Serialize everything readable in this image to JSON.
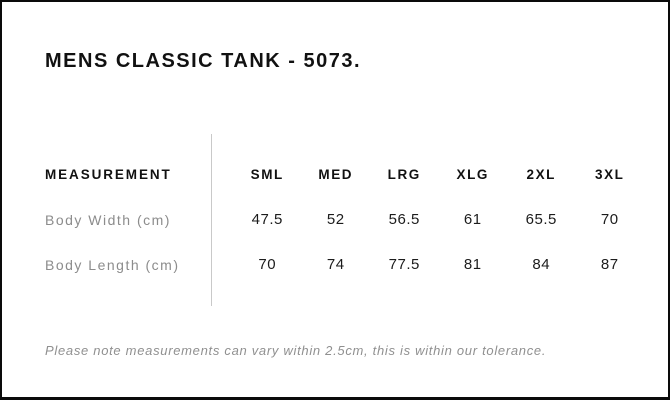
{
  "page": {
    "title": "MENS CLASSIC TANK - 5073.",
    "note": "Please note measurements can vary within 2.5cm, this is within our tolerance."
  },
  "size_chart": {
    "label_header": "MEASUREMENT",
    "size_headers": [
      "SML",
      "MED",
      "LRG",
      "XLG",
      "2XL",
      "3XL"
    ],
    "rows": [
      {
        "label": "Body Width (cm)",
        "values": [
          "47.5",
          "52",
          "56.5",
          "61",
          "65.5",
          "70"
        ]
      },
      {
        "label": "Body Length (cm)",
        "values": [
          "70",
          "74",
          "77.5",
          "81",
          "84",
          "87"
        ]
      }
    ]
  },
  "colors": {
    "frame_border": "#0a0a0a",
    "heading_text": "#111111",
    "value_text": "#1c1c1c",
    "muted_text": "#8c8c8c",
    "note_text": "#909090",
    "divider": "#c9c9c9",
    "background": "#ffffff"
  }
}
